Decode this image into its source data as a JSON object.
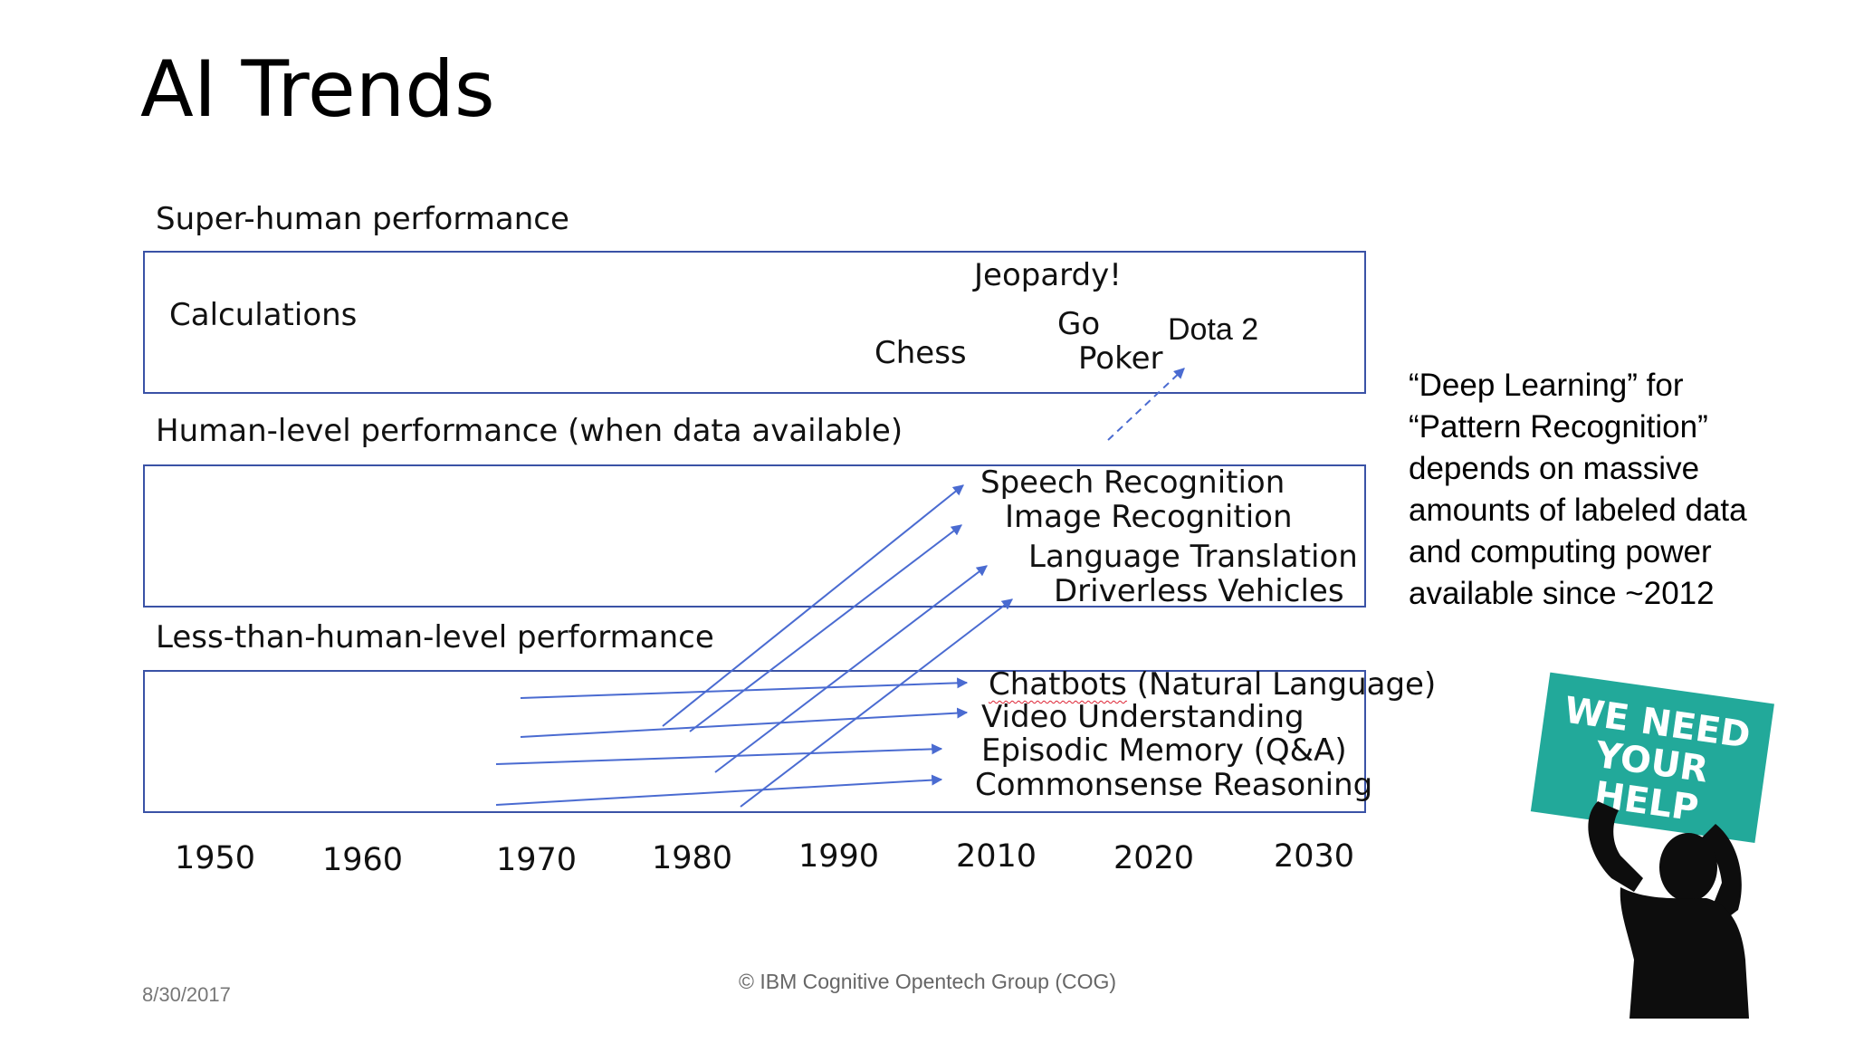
{
  "title": "AI Trends",
  "sections": {
    "super": "Super-human performance",
    "human": "Human-level performance (when data available)",
    "less": "Less-than-human-level performance"
  },
  "super_items": {
    "calculations": "Calculations",
    "jeopardy": "Jeopardy!",
    "go": "Go",
    "dota": "Dota 2",
    "chess": "Chess",
    "poker": "Poker"
  },
  "human_items": {
    "speech": "Speech Recognition",
    "image": "Image Recognition",
    "translation": "Language Translation",
    "driverless": "Driverless Vehicles"
  },
  "less_items": {
    "chatbots_word": "Chatbots",
    "chatbots_rest": " (Natural Language)",
    "video": "Video Understanding",
    "episodic": "Episodic Memory (Q&A)",
    "commonsense": "Commonsense Reasoning"
  },
  "timeline": [
    "1950",
    "1960",
    "1970",
    "1980",
    "1990",
    "2010",
    "2020",
    "2030"
  ],
  "note": [
    "“Deep Learning” for",
    "“Pattern Recognition”",
    "depends on massive",
    "amounts of labeled data",
    "and computing power",
    "available since ~2012"
  ],
  "sign": [
    "WE NEED",
    "YOUR",
    "HELP"
  ],
  "footer": {
    "date": "8/30/2017",
    "copyright": "© IBM Cognitive Opentech Group (COG)"
  },
  "colors": {
    "band_border": "#3a52a6",
    "arrow": "#4a6bd1",
    "sign": "#22a99a"
  }
}
